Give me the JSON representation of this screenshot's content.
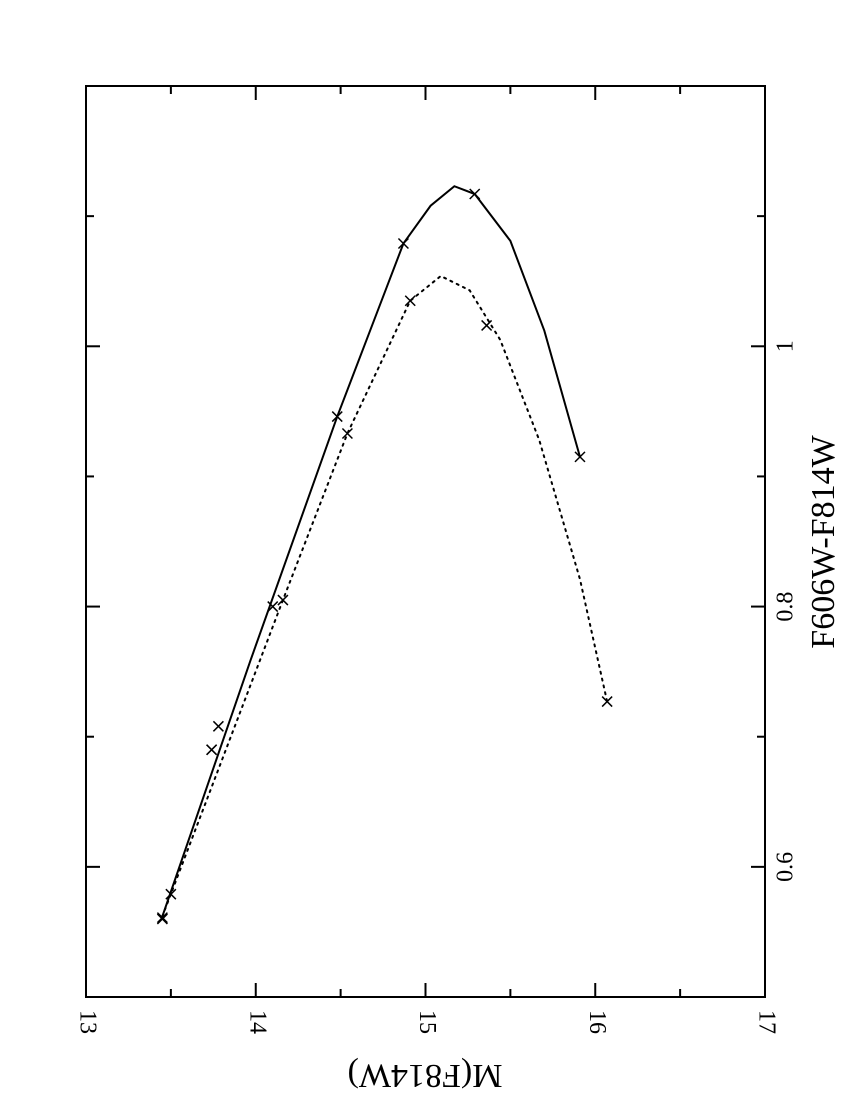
{
  "chart_data": {
    "type": "line",
    "xlabel": "M(F814W)",
    "ylabel": "F606W-F814W",
    "xlim": [
      13,
      17
    ],
    "ylim": [
      0.5,
      1.2
    ],
    "xticks": [
      13,
      14,
      15,
      16,
      17
    ],
    "xminor": [
      13.5,
      14.5,
      15.5,
      16.5
    ],
    "yticks": [
      0.6,
      0.8,
      1
    ],
    "yminor": [
      0.7,
      0.9,
      1.1
    ],
    "color": "#000000",
    "series": [
      {
        "line": "solid",
        "x": [
          13.45,
          13.97,
          14.48,
          14.87,
          15.03,
          15.17,
          15.29,
          15.5,
          15.7,
          15.91
        ],
        "values": [
          0.562,
          0.759,
          0.946,
          1.079,
          1.108,
          1.123,
          1.117,
          1.081,
          1.012,
          0.915
        ]
      },
      {
        "line": "dotted",
        "x": [
          13.45,
          14.16,
          14.54,
          14.91,
          15.09,
          15.26,
          15.44,
          15.67,
          15.91,
          16.07
        ],
        "values": [
          0.562,
          0.805,
          0.933,
          1.035,
          1.054,
          1.043,
          1.005,
          0.928,
          0.821,
          0.727
        ]
      },
      {
        "marker": "x",
        "x": [
          13.45,
          13.5,
          13.74,
          13.78,
          14.1,
          14.48,
          14.87,
          15.29,
          15.91
        ],
        "values": [
          0.56,
          0.579,
          0.69,
          0.708,
          0.8,
          0.946,
          1.079,
          1.117,
          0.915
        ]
      },
      {
        "marker": "x",
        "x": [
          13.45,
          13.74,
          14.16,
          14.54,
          14.91,
          15.36,
          16.07
        ],
        "values": [
          0.561,
          0.69,
          0.805,
          0.933,
          1.035,
          1.016,
          0.727
        ]
      }
    ]
  }
}
